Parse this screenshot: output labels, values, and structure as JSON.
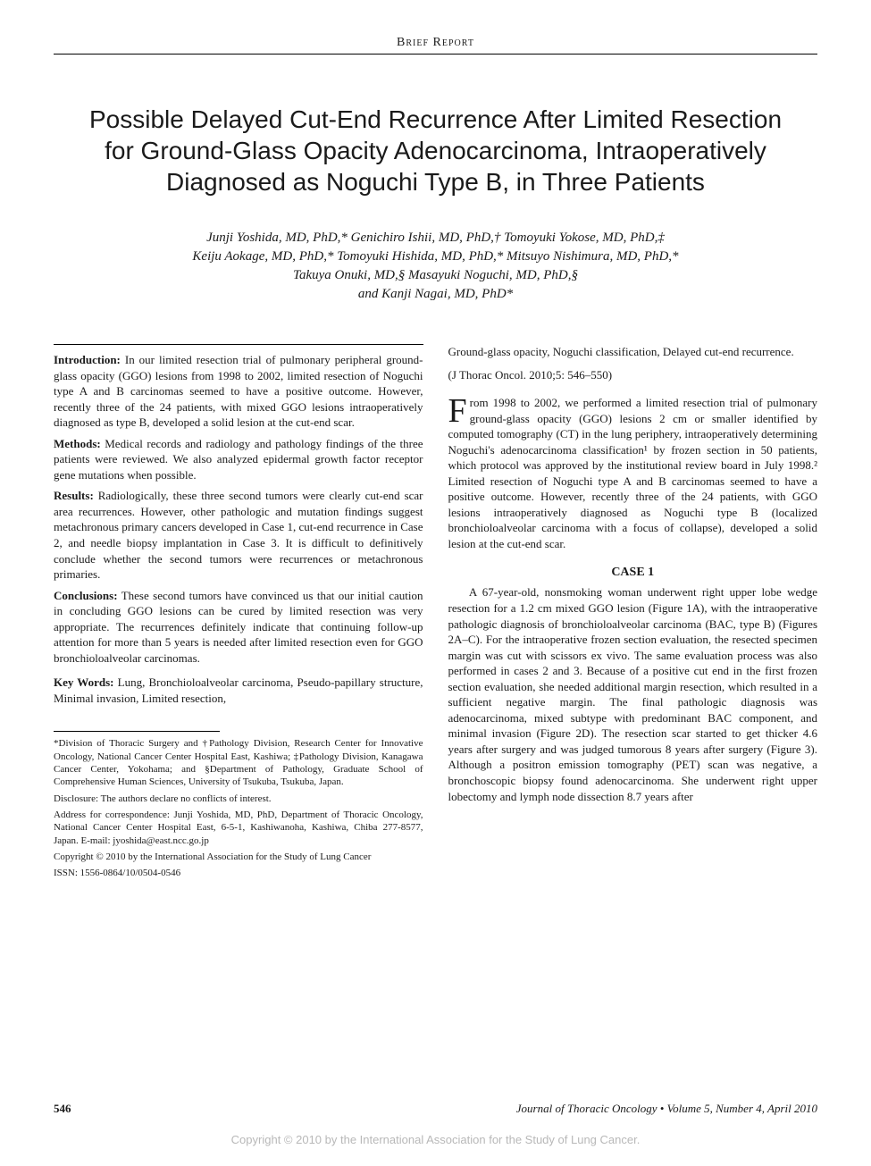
{
  "section_header": "Brief Report",
  "title": "Possible Delayed Cut-End Recurrence After Limited Resection for Ground-Glass Opacity Adenocarcinoma, Intraoperatively Diagnosed as Noguchi Type B, in Three Patients",
  "authors_line1": "Junji Yoshida, MD, PhD,* Genichiro Ishii, MD, PhD,† Tomoyuki Yokose, MD, PhD,‡",
  "authors_line2": "Keiju Aokage, MD, PhD,* Tomoyuki Hishida, MD, PhD,* Mitsuyo Nishimura, MD, PhD,*",
  "authors_line3": "Takuya Onuki, MD,§ Masayuki Noguchi, MD, PhD,§",
  "authors_line4": "and Kanji Nagai, MD, PhD*",
  "abstract": {
    "introduction_label": "Introduction:",
    "introduction": "In our limited resection trial of pulmonary peripheral ground-glass opacity (GGO) lesions from 1998 to 2002, limited resection of Noguchi type A and B carcinomas seemed to have a positive outcome. However, recently three of the 24 patients, with mixed GGO lesions intraoperatively diagnosed as type B, developed a solid lesion at the cut-end scar.",
    "methods_label": "Methods:",
    "methods": "Medical records and radiology and pathology findings of the three patients were reviewed. We also analyzed epidermal growth factor receptor gene mutations when possible.",
    "results_label": "Results:",
    "results": "Radiologically, these three second tumors were clearly cut-end scar area recurrences. However, other pathologic and mutation findings suggest metachronous primary cancers developed in Case 1, cut-end recurrence in Case 2, and needle biopsy implantation in Case 3. It is difficult to definitively conclude whether the second tumors were recurrences or metachronous primaries.",
    "conclusions_label": "Conclusions:",
    "conclusions": "These second tumors have convinced us that our initial caution in concluding GGO lesions can be cured by limited resection was very appropriate. The recurrences definitely indicate that continuing follow-up attention for more than 5 years is needed after limited resection even for GGO bronchioloalveolar carcinomas."
  },
  "keywords_label": "Key Words:",
  "keywords_left": "Lung, Bronchioloalveolar carcinoma, Pseudo-papillary structure, Minimal invasion, Limited resection,",
  "keywords_right_cont": "Ground-glass opacity, Noguchi classification, Delayed cut-end recurrence.",
  "citation": "(J Thorac Oncol. 2010;5: 546–550)",
  "intro_dropcap": "F",
  "intro_text": "rom 1998 to 2002, we performed a limited resection trial of pulmonary ground-glass opacity (GGO) lesions 2 cm or smaller identified by computed tomography (CT) in the lung periphery, intraoperatively determining Noguchi's adenocarcinoma classification¹ by frozen section in 50 patients, which protocol was approved by the institutional review board in July 1998.² Limited resection of Noguchi type A and B carcinomas seemed to have a positive outcome. However, recently three of the 24 patients, with GGO lesions intraoperatively diagnosed as Noguchi type B (localized bronchioloalveolar carcinoma with a focus of collapse), developed a solid lesion at the cut-end scar.",
  "case1_heading": "CASE 1",
  "case1_body": "A 67-year-old, nonsmoking woman underwent right upper lobe wedge resection for a 1.2 cm mixed GGO lesion (Figure 1A), with the intraoperative pathologic diagnosis of bronchioloalveolar carcinoma (BAC, type B) (Figures 2A–C). For the intraoperative frozen section evaluation, the resected specimen margin was cut with scissors ex vivo. The same evaluation process was also performed in cases 2 and 3. Because of a positive cut end in the first frozen section evaluation, she needed additional margin resection, which resulted in a sufficient negative margin. The final pathologic diagnosis was adenocarcinoma, mixed subtype with predominant BAC component, and minimal invasion (Figure 2D). The resection scar started to get thicker 4.6 years after surgery and was judged tumorous 8 years after surgery (Figure 3). Although a positron emission tomography (PET) scan was negative, a bronchoscopic biopsy found adenocarcinoma. She underwent right upper lobectomy and lymph node dissection 8.7 years after",
  "affiliations": {
    "depts": "*Division of Thoracic Surgery and †Pathology Division, Research Center for Innovative Oncology, National Cancer Center Hospital East, Kashiwa; ‡Pathology Division, Kanagawa Cancer Center, Yokohama; and §Department of Pathology, Graduate School of Comprehensive Human Sciences, University of Tsukuba, Tsukuba, Japan.",
    "disclosure": "Disclosure: The authors declare no conflicts of interest.",
    "correspondence": "Address for correspondence: Junji Yoshida, MD, PhD, Department of Thoracic Oncology, National Cancer Center Hospital East, 6-5-1, Kashiwanoha, Kashiwa, Chiba 277-8577, Japan. E-mail: jyoshida@east.ncc.go.jp",
    "copyright": "Copyright © 2010 by the International Association for the Study of Lung Cancer",
    "issn": "ISSN: 1556-0864/10/0504-0546"
  },
  "footer": {
    "page": "546",
    "journal": "Journal of Thoracic Oncology • Volume 5, Number 4, April 2010"
  },
  "bottom_copyright": "Copyright © 2010 by the International Association for the Study of Lung Cancer.",
  "colors": {
    "text": "#1a1a1a",
    "background": "#ffffff",
    "faded": "#b8b8b8",
    "rule": "#000000"
  },
  "typography": {
    "title_fontsize": 28,
    "body_fontsize": 13,
    "authors_fontsize": 15,
    "affil_fontsize": 11,
    "title_family": "sans-serif",
    "body_family": "serif"
  }
}
